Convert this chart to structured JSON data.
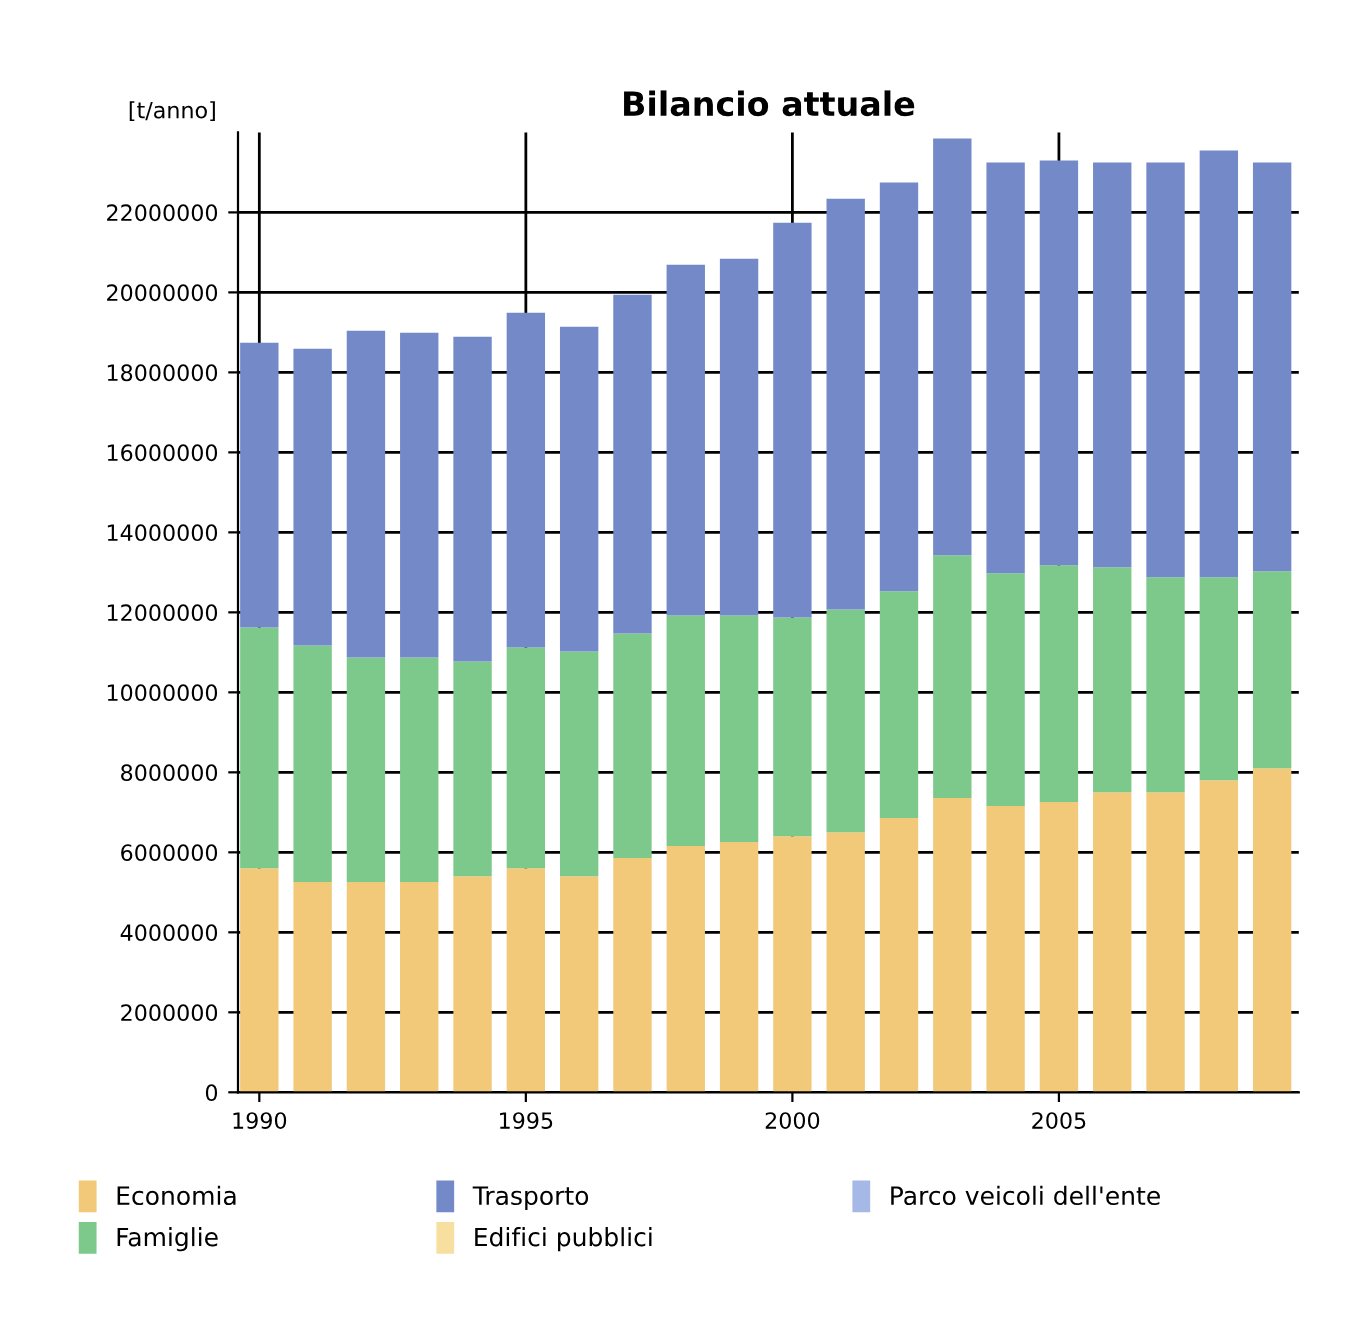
{
  "chart_data": {
    "type": "bar",
    "title": "Bilancio attuale",
    "ylabel": "[t/anno]",
    "stacked": true,
    "x": [
      1990,
      1991,
      1992,
      1993,
      1994,
      1995,
      1996,
      1997,
      1998,
      1999,
      2000,
      2001,
      2002,
      2003,
      2004,
      2005,
      2006,
      2007,
      2008,
      2009
    ],
    "series": [
      {
        "name": "Economia",
        "color": "#f2c879",
        "values": [
          5600000,
          5260000,
          5260000,
          5260000,
          5400000,
          5600000,
          5400000,
          5860000,
          6160000,
          6260000,
          6400000,
          6500000,
          6860000,
          7360000,
          7160000,
          7260000,
          7500000,
          7500000,
          7800000,
          8100000
        ]
      },
      {
        "name": "Famiglie",
        "color": "#7dc98c",
        "values": [
          6020000,
          5910000,
          5610000,
          5610000,
          5370000,
          5520000,
          5620000,
          5610000,
          5760000,
          5660000,
          5470000,
          5570000,
          5670000,
          6070000,
          5820000,
          5920000,
          5630000,
          5380000,
          5080000,
          4930000
        ]
      },
      {
        "name": "Trasporto",
        "color": "#7489c8",
        "values": [
          7120000,
          7420000,
          8170000,
          8120000,
          8120000,
          8370000,
          8120000,
          8470000,
          8770000,
          8920000,
          9870000,
          10270000,
          10220000,
          10420000,
          10270000,
          10120000,
          10120000,
          10370000,
          10670000,
          10220000
        ]
      },
      {
        "name": "Edifici pubblici",
        "color": "#f7dfa0",
        "values": [
          0,
          0,
          0,
          0,
          0,
          0,
          0,
          0,
          0,
          0,
          0,
          0,
          0,
          0,
          0,
          0,
          0,
          0,
          0,
          0
        ]
      },
      {
        "name": "Parco veicoli dell'ente",
        "color": "#a6b8e6",
        "values": [
          0,
          0,
          0,
          0,
          0,
          0,
          0,
          0,
          0,
          0,
          0,
          0,
          0,
          0,
          0,
          0,
          0,
          0,
          0,
          0
        ]
      }
    ],
    "xlim": [
      1989.6,
      2009.5
    ],
    "xticks": [
      1990,
      1995,
      2000,
      2005
    ],
    "ylim": [
      0,
      24000000
    ],
    "yticks": [
      0,
      2000000,
      4000000,
      6000000,
      8000000,
      10000000,
      12000000,
      14000000,
      16000000,
      18000000,
      20000000,
      22000000
    ],
    "grid": true,
    "legend": "bottom"
  }
}
